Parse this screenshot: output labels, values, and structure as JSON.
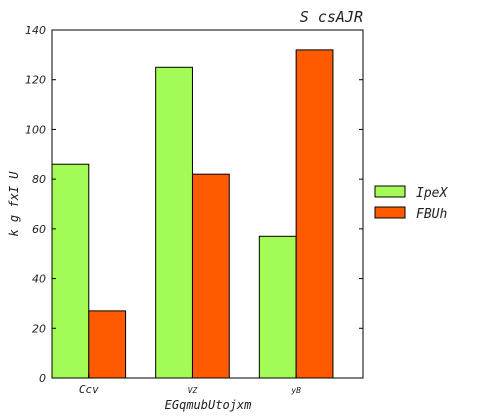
{
  "chart_data": {
    "type": "bar",
    "title": "S csAJR",
    "xlabel": "EGqmubUtojxm",
    "ylabel": "k g fxI U",
    "categories": [
      "Ccv",
      "VZ",
      "yB"
    ],
    "series": [
      {
        "name": "IpeX",
        "values": [
          86,
          125,
          57
        ],
        "color": "#a3fc55"
      },
      {
        "name": "FBUh",
        "values": [
          27,
          82,
          132
        ],
        "color": "#ff5a00"
      }
    ],
    "ylim": [
      0,
      140
    ],
    "yticks": [
      0,
      20,
      40,
      60,
      80,
      100,
      120,
      140
    ],
    "grid": false,
    "legend_position": "right"
  }
}
